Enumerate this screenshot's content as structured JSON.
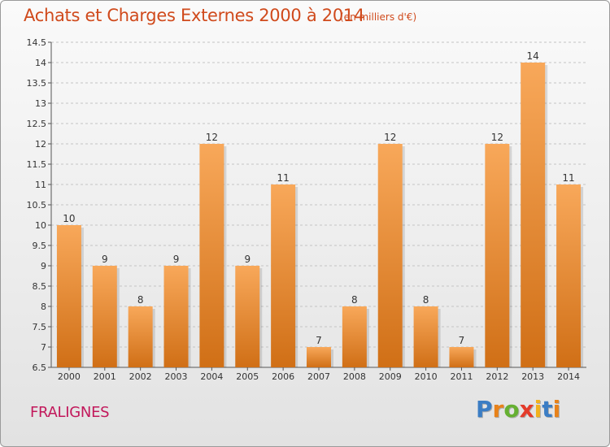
{
  "title": "Achats et Charges Externes 2000 à 2014",
  "subtitle": "(en milliers d'€)",
  "commune": "FRALIGNES",
  "brand": {
    "letters": [
      "P",
      "r",
      "o",
      "x",
      "i",
      "t",
      "i"
    ],
    "colors": [
      "#3b7dc4",
      "#e8821a",
      "#66b032",
      "#e43b2a",
      "#f2b21c",
      "#3b7dc4",
      "#e8821a"
    ]
  },
  "colors": {
    "bar_top": "#f8a85a",
    "bar_bottom": "#d06f16",
    "title": "#d04a1c",
    "commune": "#c2185b"
  },
  "chart_data": {
    "type": "bar",
    "title": "Achats et Charges Externes 2000 à 2014",
    "subtitle": "(en milliers d'€)",
    "categories": [
      "2000",
      "2001",
      "2002",
      "2003",
      "2004",
      "2005",
      "2006",
      "2007",
      "2008",
      "2009",
      "2010",
      "2011",
      "2012",
      "2013",
      "2014"
    ],
    "values": [
      10,
      9,
      8,
      9,
      12,
      9,
      11,
      7,
      8,
      12,
      8,
      7,
      12,
      14,
      11
    ],
    "value_labels": [
      "10",
      "9",
      "8",
      "9",
      "12",
      "9",
      "11",
      "7",
      "8",
      "12",
      "8",
      "7",
      "12",
      "14",
      "11"
    ],
    "ylim": [
      6.5,
      14.5
    ],
    "yticks": [
      6.5,
      7,
      7.5,
      8,
      8.5,
      9,
      9.5,
      10,
      10.5,
      11,
      11.5,
      12,
      12.5,
      13,
      13.5,
      14,
      14.5
    ],
    "ytick_labels": [
      "6.5",
      "7",
      "7.5",
      "8",
      "8.5",
      "9",
      "9.5",
      "10",
      "10.5",
      "11",
      "11.5",
      "12",
      "12.5",
      "13",
      "13.5",
      "14",
      "14.5"
    ],
    "grid": true,
    "legend": "none"
  }
}
